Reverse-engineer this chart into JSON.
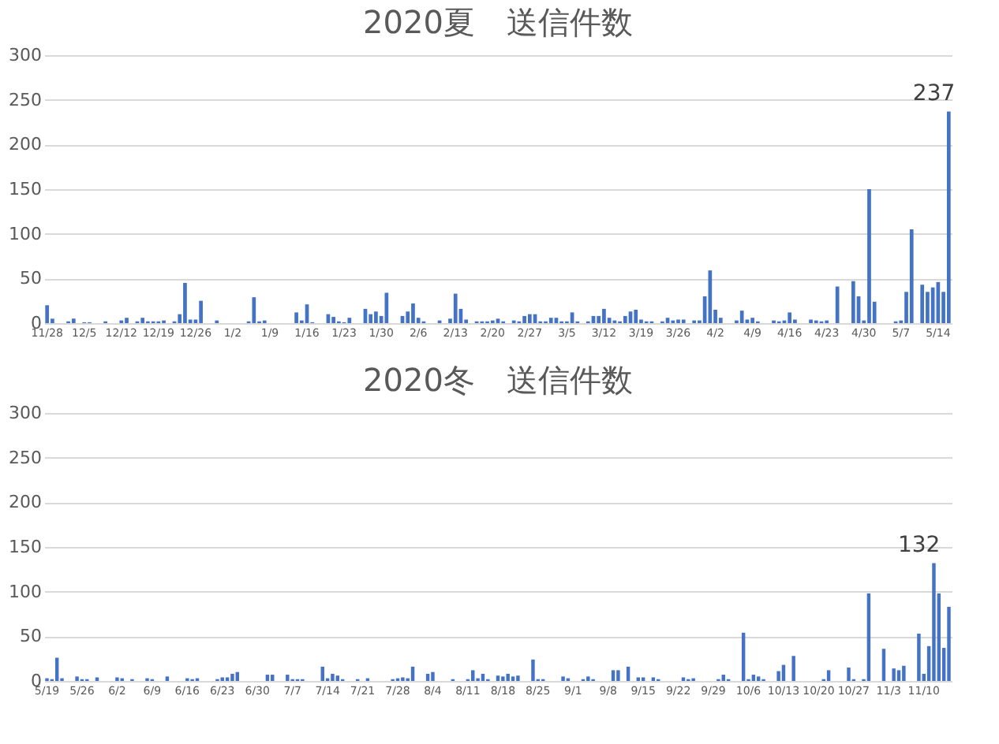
{
  "chart_data": [
    {
      "type": "bar",
      "title": "2020夏　送信件数",
      "categories": [
        "11/28",
        null,
        null,
        null,
        null,
        null,
        null,
        "12/5",
        null,
        null,
        null,
        null,
        null,
        null,
        "12/12",
        null,
        null,
        null,
        null,
        null,
        null,
        "12/19",
        null,
        null,
        null,
        null,
        null,
        null,
        "12/26",
        null,
        null,
        null,
        null,
        null,
        null,
        "1/2",
        null,
        null,
        null,
        null,
        null,
        null,
        "1/9",
        null,
        null,
        null,
        null,
        null,
        null,
        "1/16",
        null,
        null,
        null,
        null,
        null,
        null,
        "1/23",
        null,
        null,
        null,
        null,
        null,
        null,
        "1/30",
        null,
        null,
        null,
        null,
        null,
        null,
        "2/6",
        null,
        null,
        null,
        null,
        null,
        null,
        "2/13",
        null,
        null,
        null,
        null,
        null,
        null,
        "2/20",
        null,
        null,
        null,
        null,
        null,
        null,
        "2/27",
        null,
        null,
        null,
        null,
        null,
        null,
        "3/5",
        null,
        null,
        null,
        null,
        null,
        null,
        "3/12",
        null,
        null,
        null,
        null,
        null,
        null,
        "3/19",
        null,
        null,
        null,
        null,
        null,
        null,
        "3/26",
        null,
        null,
        null,
        null,
        null,
        null,
        "4/2",
        null,
        null,
        null,
        null,
        null,
        null,
        "4/9",
        null,
        null,
        null,
        null,
        null,
        null,
        "4/16",
        null,
        null,
        null,
        null,
        null,
        null,
        "4/23",
        null,
        null,
        null,
        null,
        null,
        null,
        "4/30",
        null,
        null,
        null,
        null,
        null,
        null,
        "5/7",
        null,
        null,
        null,
        null,
        null,
        null,
        "5/14",
        null,
        null
      ],
      "values": [
        20,
        5,
        0,
        0,
        2,
        5,
        0,
        1,
        1,
        0,
        0,
        2,
        0,
        0,
        3,
        6,
        0,
        2,
        6,
        2,
        2,
        2,
        3,
        0,
        2,
        10,
        45,
        4,
        4,
        25,
        0,
        0,
        3,
        0,
        0,
        0,
        0,
        0,
        2,
        29,
        2,
        3,
        0,
        0,
        0,
        0,
        0,
        12,
        3,
        21,
        1,
        0,
        0,
        10,
        7,
        2,
        1,
        6,
        0,
        0,
        16,
        10,
        13,
        8,
        34,
        0,
        0,
        8,
        13,
        22,
        6,
        2,
        0,
        0,
        3,
        0,
        5,
        33,
        16,
        4,
        0,
        2,
        2,
        2,
        3,
        5,
        2,
        0,
        3,
        2,
        8,
        10,
        10,
        2,
        2,
        6,
        6,
        2,
        2,
        12,
        2,
        0,
        2,
        8,
        8,
        16,
        6,
        3,
        2,
        8,
        13,
        15,
        4,
        2,
        2,
        0,
        2,
        6,
        3,
        4,
        4,
        0,
        3,
        3,
        30,
        59,
        15,
        6,
        0,
        0,
        3,
        14,
        4,
        6,
        2,
        0,
        0,
        3,
        2,
        3,
        12,
        4,
        0,
        0,
        4,
        3,
        2,
        3,
        0,
        41,
        0,
        0,
        47,
        30,
        3,
        150,
        24,
        0,
        0,
        0,
        2,
        3,
        35,
        105,
        0,
        43,
        35,
        40,
        46,
        35,
        237
      ],
      "value_labels": [
        null,
        null,
        null,
        null,
        null,
        null,
        null,
        null,
        null,
        null,
        null,
        null,
        null,
        null,
        null,
        null,
        null,
        null,
        null,
        null,
        null,
        null,
        null,
        null,
        null,
        null,
        null,
        null,
        null,
        null,
        null,
        null,
        null,
        null,
        null,
        null,
        null,
        null,
        null,
        null,
        null,
        null,
        null,
        null,
        null,
        null,
        null,
        null,
        null,
        null,
        null,
        null,
        null,
        null,
        null,
        null,
        null,
        null,
        null,
        null,
        null,
        null,
        null,
        null,
        null,
        null,
        null,
        null,
        null,
        null,
        null,
        null,
        null,
        null,
        null,
        null,
        null,
        null,
        null,
        null,
        null,
        null,
        null,
        null,
        null,
        null,
        null,
        null,
        null,
        null,
        null,
        null,
        null,
        null,
        null,
        null,
        null,
        null,
        null,
        null,
        null,
        null,
        null,
        null,
        null,
        null,
        null,
        null,
        null,
        null,
        null,
        null,
        null,
        null,
        null,
        null,
        null,
        null,
        null,
        null,
        null,
        null,
        null,
        null,
        null,
        null,
        null,
        null,
        null,
        null,
        null,
        null,
        null,
        null,
        null,
        null,
        null,
        null,
        null,
        null,
        null,
        null,
        null,
        null,
        null,
        null,
        null,
        null,
        null,
        null,
        null,
        null,
        null,
        null,
        null,
        null,
        null,
        null,
        null,
        null,
        null,
        null,
        null,
        null,
        null,
        null,
        null,
        null,
        null,
        null,
        "237"
      ],
      "color": "#4472c4",
      "ylim": [
        0,
        300
      ],
      "yticks": [
        0,
        50,
        100,
        150,
        200,
        250,
        300
      ],
      "grid": "y"
    },
    {
      "type": "bar",
      "title": "2020冬　送信件数",
      "categories": [
        "5/19",
        null,
        null,
        null,
        null,
        null,
        null,
        "5/26",
        null,
        null,
        null,
        null,
        null,
        null,
        "6/2",
        null,
        null,
        null,
        null,
        null,
        null,
        "6/9",
        null,
        null,
        null,
        null,
        null,
        null,
        "6/16",
        null,
        null,
        null,
        null,
        null,
        null,
        "6/23",
        null,
        null,
        null,
        null,
        null,
        null,
        "6/30",
        null,
        null,
        null,
        null,
        null,
        null,
        "7/7",
        null,
        null,
        null,
        null,
        null,
        null,
        "7/14",
        null,
        null,
        null,
        null,
        null,
        null,
        "7/21",
        null,
        null,
        null,
        null,
        null,
        null,
        "7/28",
        null,
        null,
        null,
        null,
        null,
        null,
        "8/4",
        null,
        null,
        null,
        null,
        null,
        null,
        "8/11",
        null,
        null,
        null,
        null,
        null,
        null,
        "8/18",
        null,
        null,
        null,
        null,
        null,
        null,
        "8/25",
        null,
        null,
        null,
        null,
        null,
        null,
        "9/1",
        null,
        null,
        null,
        null,
        null,
        null,
        "9/8",
        null,
        null,
        null,
        null,
        null,
        null,
        "9/15",
        null,
        null,
        null,
        null,
        null,
        null,
        "9/22",
        null,
        null,
        null,
        null,
        null,
        null,
        "9/29",
        null,
        null,
        null,
        null,
        null,
        null,
        "10/6",
        null,
        null,
        null,
        null,
        null,
        null,
        "10/13",
        null,
        null,
        null,
        null,
        null,
        null,
        "10/20",
        null,
        null,
        null,
        null,
        null,
        null,
        "10/27",
        null,
        null,
        null,
        null,
        null,
        null,
        "11/3",
        null,
        null,
        null,
        null,
        null,
        null,
        "11/10",
        null,
        null,
        null,
        null,
        null
      ],
      "values": [
        3,
        2,
        26,
        3,
        0,
        0,
        5,
        2,
        2,
        0,
        4,
        0,
        0,
        0,
        4,
        3,
        0,
        2,
        0,
        0,
        3,
        2,
        0,
        0,
        5,
        0,
        0,
        0,
        3,
        2,
        3,
        0,
        0,
        0,
        2,
        4,
        4,
        8,
        10,
        0,
        0,
        0,
        0,
        0,
        7,
        7,
        0,
        0,
        7,
        2,
        2,
        2,
        0,
        0,
        0,
        16,
        3,
        8,
        6,
        2,
        0,
        0,
        2,
        0,
        3,
        0,
        0,
        0,
        0,
        2,
        3,
        4,
        3,
        16,
        0,
        0,
        8,
        10,
        0,
        0,
        0,
        2,
        0,
        0,
        2,
        12,
        3,
        8,
        2,
        0,
        6,
        5,
        8,
        5,
        6,
        0,
        0,
        24,
        2,
        2,
        0,
        0,
        0,
        5,
        3,
        0,
        0,
        2,
        5,
        2,
        0,
        0,
        0,
        12,
        12,
        0,
        16,
        0,
        4,
        4,
        0,
        4,
        2,
        0,
        0,
        0,
        0,
        4,
        2,
        3,
        0,
        0,
        0,
        0,
        2,
        7,
        2,
        0,
        0,
        54,
        2,
        7,
        5,
        2,
        0,
        0,
        11,
        18,
        0,
        28,
        0,
        0,
        0,
        0,
        0,
        2,
        12,
        0,
        0,
        0,
        15,
        2,
        0,
        2,
        98,
        0,
        0,
        36,
        0,
        14,
        12,
        17,
        0,
        0,
        53,
        8,
        39,
        132,
        98,
        37,
        83
      ],
      "value_labels": [
        null,
        null,
        null,
        null,
        null,
        null,
        null,
        null,
        null,
        null,
        null,
        null,
        null,
        null,
        null,
        null,
        null,
        null,
        null,
        null,
        null,
        null,
        null,
        null,
        null,
        null,
        null,
        null,
        null,
        null,
        null,
        null,
        null,
        null,
        null,
        null,
        null,
        null,
        null,
        null,
        null,
        null,
        null,
        null,
        null,
        null,
        null,
        null,
        null,
        null,
        null,
        null,
        null,
        null,
        null,
        null,
        null,
        null,
        null,
        null,
        null,
        null,
        null,
        null,
        null,
        null,
        null,
        null,
        null,
        null,
        null,
        null,
        null,
        null,
        null,
        null,
        null,
        null,
        null,
        null,
        null,
        null,
        null,
        null,
        null,
        null,
        null,
        null,
        null,
        null,
        null,
        null,
        null,
        null,
        null,
        null,
        null,
        null,
        null,
        null,
        null,
        null,
        null,
        null,
        null,
        null,
        null,
        null,
        null,
        null,
        null,
        null,
        null,
        null,
        null,
        null,
        null,
        null,
        null,
        null,
        null,
        null,
        null,
        null,
        null,
        null,
        null,
        null,
        null,
        null,
        null,
        null,
        null,
        null,
        null,
        null,
        null,
        null,
        null,
        null,
        null,
        null,
        null,
        null,
        null,
        null,
        null,
        null,
        null,
        null,
        null,
        null,
        null,
        null,
        null,
        null,
        null,
        null,
        null,
        null,
        null,
        null,
        null,
        null,
        null,
        null,
        null,
        null,
        null,
        null,
        null,
        null,
        null,
        null,
        null,
        null,
        null,
        "132",
        null,
        null,
        null
      ],
      "color": "#4472c4",
      "ylim": [
        0,
        300
      ],
      "yticks": [
        0,
        50,
        100,
        150,
        200,
        250,
        300
      ],
      "grid": "y"
    }
  ]
}
